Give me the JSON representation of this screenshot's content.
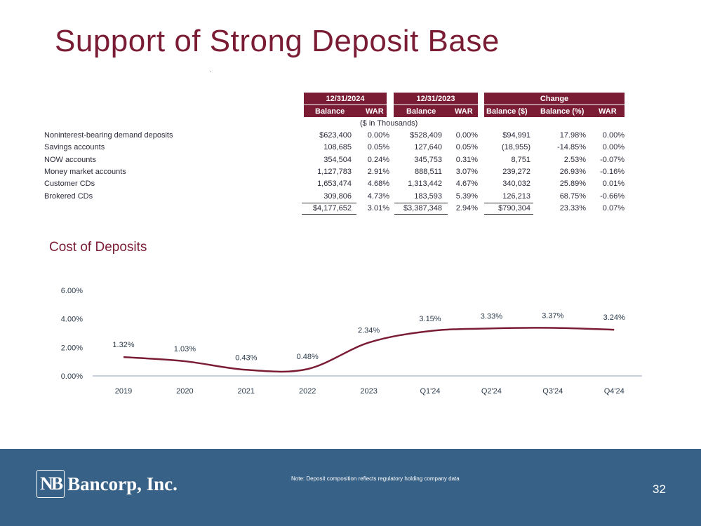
{
  "title": "Support of Strong Deposit Base",
  "table": {
    "periods": [
      "12/31/2024",
      "12/31/2023",
      "Change"
    ],
    "columns": [
      "Balance",
      "WAR",
      "Balance",
      "WAR",
      "Balance ($)",
      "Balance (%)",
      "WAR"
    ],
    "units": "($ in Thousands)",
    "rows": [
      {
        "label": "Noninterest-bearing demand deposits",
        "v": [
          "$623,400",
          "0.00%",
          "$528,409",
          "0.00%",
          "$94,991",
          "17.98%",
          "0.00%"
        ]
      },
      {
        "label": "Savings accounts",
        "v": [
          "108,685",
          "0.05%",
          "127,640",
          "0.05%",
          "(18,955)",
          "-14.85%",
          "0.00%"
        ]
      },
      {
        "label": "NOW accounts",
        "v": [
          "354,504",
          "0.24%",
          "345,753",
          "0.31%",
          "8,751",
          "2.53%",
          "-0.07%"
        ]
      },
      {
        "label": "Money market accounts",
        "v": [
          "1,127,783",
          "2.91%",
          "888,511",
          "3.07%",
          "239,272",
          "26.93%",
          "-0.16%"
        ]
      },
      {
        "label": "Customer CDs",
        "v": [
          "1,653,474",
          "4.68%",
          "1,313,442",
          "4.67%",
          "340,032",
          "25.89%",
          "0.01%"
        ]
      },
      {
        "label": "Brokered CDs",
        "v": [
          "309,806",
          "4.73%",
          "183,593",
          "5.39%",
          "126,213",
          "68.75%",
          "-0.66%"
        ]
      }
    ],
    "total": {
      "label": "",
      "v": [
        "$4,177,652",
        "3.01%",
        "$3,387,348",
        "2.94%",
        "$790,304",
        "23.33%",
        "0.07%"
      ]
    }
  },
  "chart_title": "Cost of Deposits",
  "chart_data": {
    "type": "line",
    "title": "Cost of Deposits",
    "categories": [
      "2019",
      "2020",
      "2021",
      "2022",
      "2023",
      "Q1'24",
      "Q2'24",
      "Q3'24",
      "Q4'24"
    ],
    "values": [
      1.32,
      1.03,
      0.43,
      0.48,
      2.34,
      3.15,
      3.33,
      3.37,
      3.24
    ],
    "value_labels": [
      "1.32%",
      "1.03%",
      "0.43%",
      "0.48%",
      "2.34%",
      "3.15%",
      "3.33%",
      "3.37%",
      "3.24%"
    ],
    "y_ticks": [
      "0.00%",
      "2.00%",
      "4.00%",
      "6.00%"
    ],
    "y_tick_values": [
      0,
      2,
      4,
      6
    ],
    "ylim": [
      0,
      6
    ],
    "xlabel": "",
    "ylabel": "",
    "series_color": "#7b1c35"
  },
  "footer": {
    "logo_mark": "NB",
    "logo_text": "Bancorp, Inc.",
    "note": "Note: Deposit composition reflects regulatory holding company data",
    "page_number": "32"
  }
}
